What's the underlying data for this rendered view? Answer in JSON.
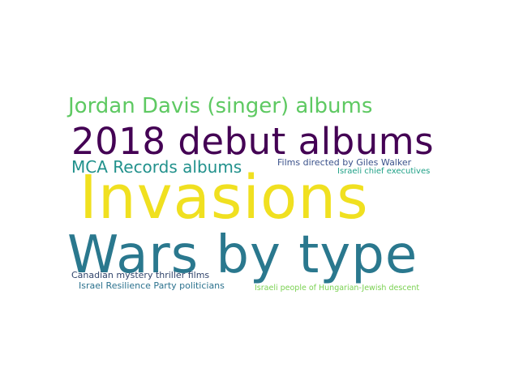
{
  "word_cloud": {
    "words": [
      {
        "text": "Invasions",
        "color": "#f0e020"
      },
      {
        "text": "Wars by type",
        "color": "#2a788e"
      },
      {
        "text": "2018 debut albums",
        "color": "#440154"
      },
      {
        "text": "Jordan Davis (singer) albums",
        "color": "#5ec962"
      },
      {
        "text": "MCA Records albums",
        "color": "#21918c"
      },
      {
        "text": "Films directed by Giles Walker",
        "color": "#3b528b"
      },
      {
        "text": "Israeli chief executives",
        "color": "#1fa187"
      },
      {
        "text": "Canadian mystery thriller films",
        "color": "#31446b"
      },
      {
        "text": "Israel Resilience Party politicians",
        "color": "#2c728e"
      },
      {
        "text": "Israeli people of Hungarian-Jewish descent",
        "color": "#7ad151"
      }
    ]
  }
}
